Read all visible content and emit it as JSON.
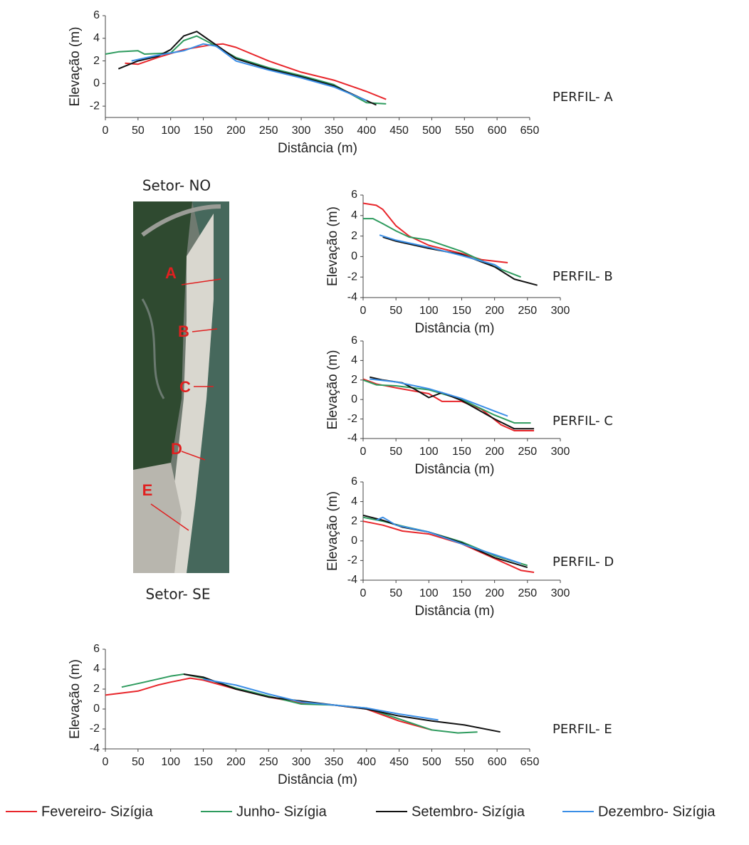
{
  "chart_data": [
    {
      "type": "line",
      "annotation": "PERFIL- A",
      "xlabel": "Distância (m)",
      "ylabel": "Elevação (m)",
      "xlim": [
        0,
        650
      ],
      "xticks": [
        0,
        50,
        100,
        150,
        200,
        250,
        300,
        350,
        400,
        450,
        500,
        550,
        600,
        650
      ],
      "ylim": [
        -3,
        6
      ],
      "yticks": [
        -2,
        0,
        2,
        4,
        6
      ],
      "series": [
        {
          "color": "#e8262b",
          "x": [
            30,
            50,
            80,
            120,
            160,
            180,
            200,
            250,
            300,
            350,
            400,
            430
          ],
          "values": [
            1.8,
            1.7,
            2.3,
            3.0,
            3.4,
            3.5,
            3.2,
            2.0,
            1.0,
            0.3,
            -0.7,
            -1.4
          ]
        },
        {
          "color": "#2e9b5e",
          "x": [
            0,
            20,
            50,
            60,
            100,
            120,
            140,
            160,
            200,
            250,
            300,
            350,
            400,
            430
          ],
          "values": [
            2.6,
            2.8,
            2.9,
            2.6,
            2.7,
            3.8,
            4.2,
            3.6,
            2.3,
            1.4,
            0.7,
            -0.1,
            -1.7,
            -1.8
          ]
        },
        {
          "color": "#111111",
          "x": [
            20,
            50,
            80,
            100,
            120,
            140,
            160,
            200,
            250,
            300,
            350,
            415
          ],
          "values": [
            1.3,
            2.0,
            2.4,
            3.0,
            4.2,
            4.6,
            3.8,
            2.2,
            1.3,
            0.6,
            -0.2,
            -1.9
          ]
        },
        {
          "color": "#3a8ee6",
          "x": [
            40,
            80,
            120,
            150,
            170,
            200,
            250,
            300,
            350,
            400
          ],
          "values": [
            2.0,
            2.5,
            2.9,
            3.5,
            3.3,
            2.0,
            1.2,
            0.5,
            -0.3,
            -1.5
          ]
        }
      ]
    },
    {
      "type": "line",
      "annotation": "PERFIL- B",
      "xlabel": "Distância (m)",
      "ylabel": "Elevação (m)",
      "xlim": [
        0,
        300
      ],
      "xticks": [
        0,
        50,
        100,
        150,
        200,
        250,
        300
      ],
      "ylim": [
        -4,
        6
      ],
      "yticks": [
        -4,
        -2,
        0,
        2,
        4,
        6
      ],
      "series": [
        {
          "color": "#e8262b",
          "x": [
            0,
            20,
            30,
            50,
            70,
            100,
            150,
            180,
            220
          ],
          "values": [
            5.2,
            5.0,
            4.6,
            3.0,
            2.0,
            1.1,
            0.3,
            -0.3,
            -0.6
          ]
        },
        {
          "color": "#2e9b5e",
          "x": [
            0,
            15,
            30,
            50,
            70,
            100,
            150,
            200,
            240
          ],
          "values": [
            3.7,
            3.7,
            3.2,
            2.5,
            1.9,
            1.6,
            0.5,
            -1.0,
            -2.0
          ]
        },
        {
          "color": "#111111",
          "x": [
            30,
            50,
            100,
            150,
            200,
            230,
            265
          ],
          "values": [
            1.9,
            1.5,
            0.8,
            0.2,
            -1.0,
            -2.2,
            -2.8
          ]
        },
        {
          "color": "#3a8ee6",
          "x": [
            25,
            50,
            100,
            150,
            200,
            210
          ],
          "values": [
            2.1,
            1.6,
            0.9,
            0.1,
            -0.8,
            -1.2
          ]
        }
      ]
    },
    {
      "type": "line",
      "annotation": "PERFIL- C",
      "xlabel": "Distância (m)",
      "ylabel": "Elevação (m)",
      "xlim": [
        0,
        300
      ],
      "xticks": [
        0,
        50,
        100,
        150,
        200,
        250,
        300
      ],
      "ylim": [
        -4,
        6
      ],
      "yticks": [
        -4,
        -2,
        0,
        2,
        4,
        6
      ],
      "series": [
        {
          "color": "#e8262b",
          "x": [
            0,
            20,
            50,
            100,
            120,
            150,
            180,
            210,
            230,
            260
          ],
          "values": [
            2.1,
            1.6,
            1.2,
            0.6,
            -0.2,
            -0.2,
            -1.0,
            -2.6,
            -3.2,
            -3.2
          ]
        },
        {
          "color": "#2e9b5e",
          "x": [
            0,
            20,
            50,
            100,
            150,
            200,
            230,
            255
          ],
          "values": [
            2.0,
            1.5,
            1.4,
            1.0,
            0,
            -1.6,
            -2.4,
            -2.4
          ]
        },
        {
          "color": "#111111",
          "x": [
            10,
            30,
            60,
            80,
            100,
            120,
            150,
            200,
            230,
            260
          ],
          "values": [
            2.3,
            2.0,
            1.7,
            1.0,
            0.2,
            0.7,
            -0.1,
            -2.0,
            -3.0,
            -3.0
          ]
        },
        {
          "color": "#3a8ee6",
          "x": [
            10,
            50,
            100,
            150,
            200,
            220
          ],
          "values": [
            2.1,
            1.8,
            1.1,
            0.1,
            -1.2,
            -1.7
          ]
        }
      ]
    },
    {
      "type": "line",
      "annotation": "PERFIL- D",
      "xlabel": "Distância (m)",
      "ylabel": "Elevação (m)",
      "xlim": [
        0,
        300
      ],
      "xticks": [
        0,
        50,
        100,
        150,
        200,
        250,
        300
      ],
      "ylim": [
        -4,
        6
      ],
      "yticks": [
        -4,
        -2,
        0,
        2,
        4,
        6
      ],
      "series": [
        {
          "color": "#e8262b",
          "x": [
            0,
            30,
            60,
            100,
            150,
            200,
            240,
            260
          ],
          "values": [
            2.0,
            1.6,
            1.0,
            0.7,
            -0.3,
            -1.8,
            -3.0,
            -3.2
          ]
        },
        {
          "color": "#2e9b5e",
          "x": [
            0,
            30,
            60,
            100,
            150,
            200,
            250
          ],
          "values": [
            2.4,
            2.0,
            1.5,
            0.9,
            -0.1,
            -1.5,
            -2.5
          ]
        },
        {
          "color": "#111111",
          "x": [
            0,
            30,
            60,
            100,
            150,
            200,
            250
          ],
          "values": [
            2.6,
            2.1,
            1.4,
            0.9,
            -0.2,
            -1.7,
            -2.7
          ]
        },
        {
          "color": "#3a8ee6",
          "x": [
            20,
            30,
            50,
            100,
            150,
            200,
            240
          ],
          "values": [
            2.1,
            2.4,
            1.6,
            0.9,
            -0.3,
            -1.4,
            -2.3
          ]
        }
      ]
    },
    {
      "type": "line",
      "annotation": "PERFIL- E",
      "xlabel": "Distância (m)",
      "ylabel": "Elevação (m)",
      "xlim": [
        0,
        650
      ],
      "xticks": [
        0,
        50,
        100,
        150,
        200,
        250,
        300,
        350,
        400,
        450,
        500,
        550,
        600,
        650
      ],
      "ylim": [
        -4,
        6
      ],
      "yticks": [
        -4,
        -2,
        0,
        2,
        4,
        6
      ],
      "series": [
        {
          "color": "#e8262b",
          "x": [
            0,
            50,
            80,
            100,
            130,
            150,
            200,
            250,
            300,
            350,
            400,
            450,
            500
          ],
          "values": [
            1.4,
            1.8,
            2.4,
            2.7,
            3.1,
            2.9,
            2.0,
            1.2,
            0.6,
            0.4,
            0,
            -1.2,
            -2.1
          ]
        },
        {
          "color": "#2e9b5e",
          "x": [
            25,
            60,
            100,
            120,
            150,
            200,
            250,
            300,
            350,
            400,
            450,
            500,
            540,
            570
          ],
          "values": [
            2.2,
            2.7,
            3.3,
            3.5,
            3.1,
            2.1,
            1.3,
            0.5,
            0.4,
            0.1,
            -1.0,
            -2.1,
            -2.4,
            -2.3
          ]
        },
        {
          "color": "#111111",
          "x": [
            120,
            150,
            200,
            250,
            300,
            350,
            400,
            450,
            500,
            550,
            605
          ],
          "values": [
            3.5,
            3.2,
            2.0,
            1.2,
            0.8,
            0.4,
            0,
            -0.7,
            -1.2,
            -1.6,
            -2.3
          ]
        },
        {
          "color": "#3a8ee6",
          "x": [
            150,
            200,
            250,
            300,
            350,
            400,
            450,
            510
          ],
          "values": [
            3.0,
            2.4,
            1.5,
            0.7,
            0.4,
            0.1,
            -0.5,
            -1.1
          ]
        }
      ]
    }
  ],
  "legend": [
    {
      "name": "Fevereiro- Sizígia",
      "color": "#e8262b"
    },
    {
      "name": "Junho- Sizígia",
      "color": "#2e9b5e"
    },
    {
      "name": "Setembro- Sizígia",
      "color": "#111111"
    },
    {
      "name": "Dezembro- Sizígia",
      "color": "#3a8ee6"
    }
  ],
  "map": {
    "title_top": "Setor- NO",
    "title_bottom": "Setor- SE",
    "labels": [
      "A",
      "B",
      "C",
      "D",
      "E"
    ]
  }
}
